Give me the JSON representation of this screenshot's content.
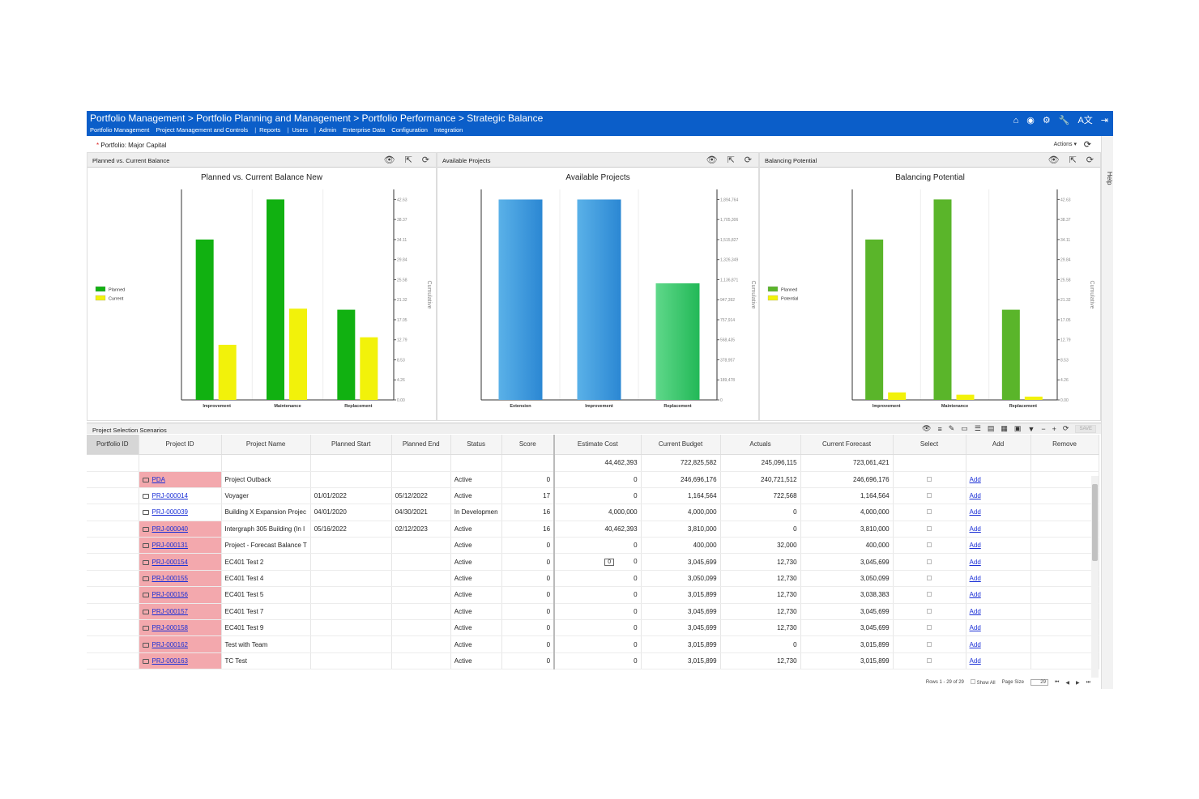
{
  "header": {
    "breadcrumb": "Portfolio Management > Portfolio Planning and Management > Portfolio Performance > Strategic Balance",
    "nav": [
      "Portfolio Management",
      "Project Management and Controls",
      "Reports",
      "Users",
      "Admin",
      "Enterprise Data",
      "Configuration",
      "Integration"
    ],
    "icons": [
      "home-icon",
      "circle-logo-icon",
      "gear-icon",
      "wrench-icon",
      "translate-icon",
      "logout-icon"
    ],
    "translate_glyph": "A文"
  },
  "portfolio": {
    "label": "Portfolio:",
    "value": "Major Capital",
    "actions_label": "Actions ▾"
  },
  "help_label": "Help",
  "panels": [
    {
      "title": "Planned vs. Current Balance"
    },
    {
      "title": "Available Projects"
    },
    {
      "title": "Balancing Potential"
    }
  ],
  "chart_data": [
    {
      "type": "bar",
      "title": "Planned vs. Current Balance New",
      "categories": [
        "Improvement",
        "Maintenance",
        "Replacement"
      ],
      "series": [
        {
          "name": "Planned",
          "values": [
            34.11,
            42.63,
            19.18
          ],
          "color": "#11b111"
        },
        {
          "name": "Current",
          "values": [
            11.72,
            19.4,
            13.32
          ],
          "color": "#f2f20a"
        }
      ],
      "ylabel": "Cumulative",
      "ylim": [
        0,
        44.76
      ],
      "yticks": [
        "42.63",
        "38.37",
        "34.11",
        "29.84",
        "25.58",
        "21.32",
        "17.05",
        "12.79",
        "8.53",
        "4.26",
        "0.00"
      ],
      "legend_position": "left"
    },
    {
      "type": "bar",
      "title": "Available Projects",
      "categories": [
        "Extension",
        "Improvement",
        "Replacement"
      ],
      "series": [
        {
          "name": "",
          "values": [
            1894764,
            1894764,
            1102000
          ],
          "color": "#3d97dc"
        }
      ],
      "ylabel": "Cumulative",
      "ylim": [
        0,
        1990000
      ],
      "yticks": [
        "1,894,764",
        "1,705,306",
        "1,515,827",
        "1,326,349",
        "1,136,871",
        "947,392",
        "757,914",
        "568,435",
        "378,957",
        "189,478",
        "0"
      ],
      "legend_position": "none"
    },
    {
      "type": "bar",
      "title": "Balancing Potential",
      "categories": [
        "Improvement",
        "Maintenance",
        "Replacement"
      ],
      "series": [
        {
          "name": "Planned",
          "values": [
            34.11,
            42.63,
            19.18
          ],
          "color": "#5ab52a"
        },
        {
          "name": "Potential",
          "values": [
            1.6,
            1.1,
            0.7
          ],
          "color": "#f2f20a"
        }
      ],
      "ylabel": "Cumulative",
      "ylim": [
        0,
        44.76
      ],
      "yticks": [
        "42.63",
        "38.37",
        "34.11",
        "29.84",
        "25.58",
        "21.32",
        "17.05",
        "12.79",
        "8.53",
        "4.26",
        "0.00"
      ],
      "legend_position": "left"
    }
  ],
  "grid": {
    "title": "Project Selection Scenarios",
    "save_label": "SAVE",
    "columns": [
      "Portfolio ID",
      "Project ID",
      "Project Name",
      "Planned Start",
      "Planned End",
      "Status",
      "Score",
      "Estimate Cost",
      "Current Budget",
      "Actuals",
      "Current Forecast",
      "Select",
      "Add",
      "Remove"
    ],
    "totals": {
      "estimate_cost": "44,462,393",
      "current_budget": "722,825,582",
      "actuals": "245,096,115",
      "current_forecast": "723,061,421"
    },
    "rows": [
      {
        "pid": "PDA",
        "name": "Project Outback",
        "start": "",
        "end": "",
        "status": "Active",
        "score": "0",
        "est": "0",
        "budget": "246,696,176",
        "actuals": "240,721,512",
        "forecast": "246,696,176",
        "add": "Add",
        "hl": true
      },
      {
        "pid": "PRJ-000014",
        "name": "Voyager",
        "start": "01/01/2022",
        "end": "05/12/2022",
        "status": "Active",
        "score": "17",
        "est": "0",
        "budget": "1,164,564",
        "actuals": "722,568",
        "forecast": "1,164,564",
        "add": "Add",
        "hl": false
      },
      {
        "pid": "PRJ-000039",
        "name": "Building X Expansion Projec",
        "start": "04/01/2020",
        "end": "04/30/2021",
        "status": "In Developmen",
        "score": "16",
        "est": "4,000,000",
        "budget": "4,000,000",
        "actuals": "0",
        "forecast": "4,000,000",
        "add": "Add",
        "hl": false
      },
      {
        "pid": "PRJ-000040",
        "name": "Intergraph 305 Building (In I",
        "start": "05/16/2022",
        "end": "02/12/2023",
        "status": "Active",
        "score": "16",
        "est": "40,462,393",
        "budget": "3,810,000",
        "actuals": "0",
        "forecast": "3,810,000",
        "add": "Add",
        "hl": true
      },
      {
        "pid": "PRJ-000131",
        "name": "Project - Forecast Balance T",
        "start": "",
        "end": "",
        "status": "Active",
        "score": "0",
        "est": "0",
        "budget": "400,000",
        "actuals": "32,000",
        "forecast": "400,000",
        "add": "Add",
        "hl": true
      },
      {
        "pid": "PRJ-000154",
        "name": "EC401 Test 2",
        "start": "",
        "end": "",
        "status": "Active",
        "score": "0",
        "est": "0",
        "budget": "3,045,699",
        "actuals": "12,730",
        "forecast": "3,045,699",
        "add": "Add",
        "hl": true,
        "editing": "0"
      },
      {
        "pid": "PRJ-000155",
        "name": "EC401 Test 4",
        "start": "",
        "end": "",
        "status": "Active",
        "score": "0",
        "est": "0",
        "budget": "3,050,099",
        "actuals": "12,730",
        "forecast": "3,050,099",
        "add": "Add",
        "hl": true
      },
      {
        "pid": "PRJ-000156",
        "name": "EC401 Test 5",
        "start": "",
        "end": "",
        "status": "Active",
        "score": "0",
        "est": "0",
        "budget": "3,015,899",
        "actuals": "12,730",
        "forecast": "3,038,383",
        "add": "Add",
        "hl": true
      },
      {
        "pid": "PRJ-000157",
        "name": "EC401 Test 7",
        "start": "",
        "end": "",
        "status": "Active",
        "score": "0",
        "est": "0",
        "budget": "3,045,699",
        "actuals": "12,730",
        "forecast": "3,045,699",
        "add": "Add",
        "hl": true
      },
      {
        "pid": "PRJ-000158",
        "name": "EC401 Test 9",
        "start": "",
        "end": "",
        "status": "Active",
        "score": "0",
        "est": "0",
        "budget": "3,045,699",
        "actuals": "12,730",
        "forecast": "3,045,699",
        "add": "Add",
        "hl": true
      },
      {
        "pid": "PRJ-000162",
        "name": "Test with Team",
        "start": "",
        "end": "",
        "status": "Active",
        "score": "0",
        "est": "0",
        "budget": "3,015,899",
        "actuals": "0",
        "forecast": "3,015,899",
        "add": "Add",
        "hl": true
      },
      {
        "pid": "PRJ-000163",
        "name": "TC Test",
        "start": "",
        "end": "",
        "status": "Active",
        "score": "0",
        "est": "0",
        "budget": "3,015,899",
        "actuals": "12,730",
        "forecast": "3,015,899",
        "add": "Add",
        "hl": true
      }
    ],
    "pager": {
      "rows_text": "Rows 1 - 29 of 29",
      "show_all": "Show All",
      "page_size_label": "Page Size",
      "page_size": "29"
    }
  }
}
